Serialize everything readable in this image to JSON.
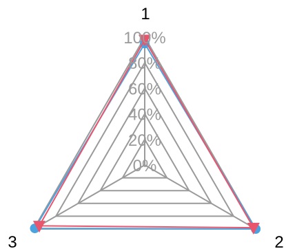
{
  "chart_data": {
    "type": "radar",
    "axes": [
      "1",
      "2",
      "3"
    ],
    "radial_ticks": [
      "0%",
      "20%",
      "40%",
      "60%",
      "80%",
      "100%"
    ],
    "rlim": [
      0,
      100
    ],
    "series": [
      {
        "values": [
          95,
          100,
          99
        ],
        "color": "#4aa3df",
        "marker": "circle"
      },
      {
        "values": [
          98,
          98,
          95
        ],
        "color": "#e8566e",
        "marker": "triangle-down"
      }
    ],
    "grid_color": "#9a9a9a"
  }
}
